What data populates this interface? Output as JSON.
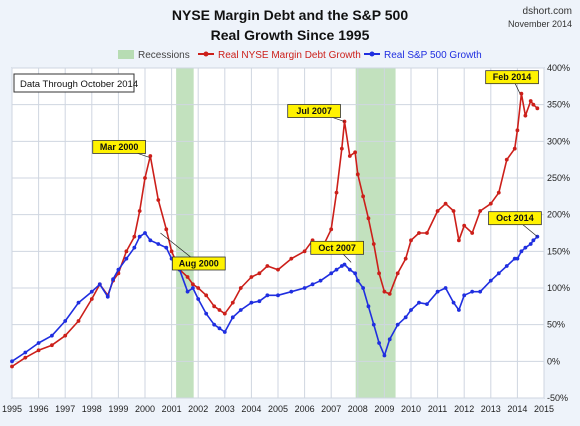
{
  "header": {
    "title_line1": "NYSE Margin Debt and the S&P 500",
    "title_line2": "Real Growth Since 1995",
    "source_line1": "dshort.com",
    "source_line2": "November 2014"
  },
  "note": "Data Through October 2014",
  "colors": {
    "margin": "#cc1f1a",
    "sp500": "#1f2ee0",
    "recession": "#b7dcb3",
    "grid": "#cfd6e0",
    "callout": "#fff200"
  },
  "chart_data": {
    "type": "line",
    "title": "NYSE Margin Debt and the S&P 500 Real Growth Since 1995",
    "xlim": [
      1995.0,
      2015.0
    ],
    "ylim": [
      -50,
      400
    ],
    "x_ticks": [
      1995,
      1996,
      1997,
      1998,
      1999,
      2000,
      2001,
      2002,
      2003,
      2004,
      2005,
      2006,
      2007,
      2008,
      2009,
      2010,
      2011,
      2012,
      2013,
      2014,
      2015
    ],
    "x_tick_labels": [
      "1995",
      "1996",
      "1997",
      "1998",
      "1999",
      "2000",
      "2001",
      "2002",
      "2003",
      "2004",
      "2005",
      "2006",
      "2007",
      "2008",
      "2009",
      "2010",
      "2011",
      "2012",
      "2013",
      "2014",
      "2015"
    ],
    "y_ticks": [
      -50,
      0,
      50,
      100,
      150,
      200,
      250,
      300,
      350,
      400
    ],
    "y_tick_labels": [
      "-50%",
      "0%",
      "50%",
      "100%",
      "150%",
      "200%",
      "250%",
      "300%",
      "350%",
      "400%"
    ],
    "grid": true,
    "legend_position": "top",
    "recessions": {
      "label": "Recessions",
      "periods": [
        [
          2001.17,
          2001.83
        ],
        [
          2007.92,
          2009.42
        ]
      ]
    },
    "series": [
      {
        "name": "Real NYSE Margin Debt Growth",
        "x": [
          1995.0,
          1995.5,
          1996.0,
          1996.5,
          1997.0,
          1997.5,
          1998.0,
          1998.3,
          1998.6,
          1998.8,
          1999.0,
          1999.3,
          1999.6,
          1999.8,
          2000.0,
          2000.2,
          2000.5,
          2000.8,
          2001.0,
          2001.3,
          2001.6,
          2001.8,
          2002.0,
          2002.3,
          2002.6,
          2002.8,
          2003.0,
          2003.3,
          2003.6,
          2004.0,
          2004.3,
          2004.6,
          2005.0,
          2005.5,
          2006.0,
          2006.3,
          2006.6,
          2007.0,
          2007.2,
          2007.4,
          2007.5,
          2007.7,
          2007.9,
          2008.0,
          2008.2,
          2008.4,
          2008.6,
          2008.8,
          2009.0,
          2009.2,
          2009.5,
          2009.8,
          2010.0,
          2010.3,
          2010.6,
          2011.0,
          2011.3,
          2011.6,
          2011.8,
          2012.0,
          2012.3,
          2012.6,
          2013.0,
          2013.3,
          2013.6,
          2013.9,
          2014.0,
          2014.15,
          2014.3,
          2014.5,
          2014.6,
          2014.75
        ],
        "y": [
          -7,
          5,
          15,
          22,
          35,
          55,
          85,
          105,
          90,
          110,
          120,
          150,
          170,
          205,
          250,
          280,
          220,
          180,
          150,
          125,
          115,
          105,
          100,
          90,
          75,
          70,
          65,
          80,
          100,
          115,
          120,
          130,
          125,
          140,
          150,
          165,
          150,
          180,
          230,
          290,
          327,
          280,
          285,
          255,
          225,
          195,
          160,
          120,
          95,
          92,
          120,
          140,
          165,
          175,
          175,
          205,
          215,
          205,
          165,
          185,
          175,
          205,
          215,
          230,
          275,
          290,
          315,
          365,
          335,
          355,
          350,
          345
        ]
      },
      {
        "name": "Real S&P 500 Growth",
        "x": [
          1995.0,
          1995.5,
          1996.0,
          1996.5,
          1997.0,
          1997.5,
          1998.0,
          1998.3,
          1998.6,
          1998.8,
          1999.0,
          1999.3,
          1999.6,
          1999.8,
          2000.0,
          2000.2,
          2000.5,
          2000.8,
          2001.0,
          2001.3,
          2001.6,
          2001.8,
          2002.0,
          2002.3,
          2002.6,
          2002.8,
          2003.0,
          2003.3,
          2003.6,
          2004.0,
          2004.3,
          2004.6,
          2005.0,
          2005.5,
          2006.0,
          2006.3,
          2006.6,
          2007.0,
          2007.2,
          2007.4,
          2007.5,
          2007.7,
          2007.9,
          2008.0,
          2008.2,
          2008.4,
          2008.6,
          2008.8,
          2009.0,
          2009.2,
          2009.5,
          2009.8,
          2010.0,
          2010.3,
          2010.6,
          2011.0,
          2011.3,
          2011.6,
          2011.8,
          2012.0,
          2012.3,
          2012.6,
          2013.0,
          2013.3,
          2013.6,
          2013.9,
          2014.0,
          2014.15,
          2014.3,
          2014.5,
          2014.6,
          2014.75
        ],
        "y": [
          0,
          12,
          25,
          35,
          55,
          80,
          95,
          105,
          88,
          112,
          125,
          140,
          155,
          170,
          175,
          165,
          160,
          155,
          140,
          125,
          95,
          100,
          85,
          65,
          50,
          45,
          40,
          60,
          70,
          80,
          82,
          90,
          90,
          95,
          100,
          105,
          110,
          120,
          125,
          130,
          132,
          125,
          120,
          110,
          100,
          75,
          50,
          25,
          8,
          30,
          50,
          60,
          70,
          80,
          78,
          95,
          100,
          80,
          70,
          90,
          95,
          95,
          110,
          120,
          130,
          140,
          140,
          150,
          155,
          160,
          165,
          170
        ]
      }
    ],
    "annotations": [
      {
        "label": "Mar 2000",
        "x": 2000.17,
        "y": 278,
        "series": "Real NYSE Margin Debt Growth"
      },
      {
        "label": "Aug 2000",
        "x": 2000.58,
        "y": 175,
        "series": "Real S&P 500 Growth"
      },
      {
        "label": "Jul 2007",
        "x": 2007.5,
        "y": 327,
        "series": "Real NYSE Margin Debt Growth"
      },
      {
        "label": "Oct 2007",
        "x": 2007.75,
        "y": 135,
        "series": "Real S&P 500 Growth"
      },
      {
        "label": "Feb 2014",
        "x": 2014.1,
        "y": 365,
        "series": "Real NYSE Margin Debt Growth"
      },
      {
        "label": "Oct 2014",
        "x": 2014.75,
        "y": 170,
        "series": "Real S&P 500 Growth"
      }
    ]
  }
}
